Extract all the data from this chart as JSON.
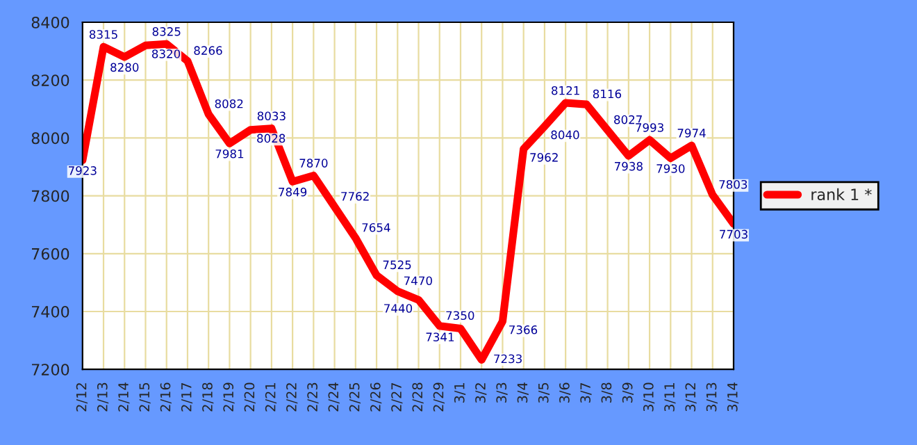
{
  "chart_data": {
    "type": "line",
    "categories": [
      "2/12",
      "2/13",
      "2/14",
      "2/15",
      "2/16",
      "2/17",
      "2/18",
      "2/19",
      "2/20",
      "2/21",
      "2/22",
      "2/23",
      "2/24",
      "2/25",
      "2/26",
      "2/27",
      "2/28",
      "2/29",
      "3/1",
      "3/2",
      "3/3",
      "3/4",
      "3/5",
      "3/6",
      "3/7",
      "3/8",
      "3/9",
      "3/10",
      "3/11",
      "3/12",
      "3/13",
      "3/14"
    ],
    "series": [
      {
        "name": "rank 1 *",
        "color": "#ff0000",
        "values": [
          7923,
          8315,
          8280,
          8320,
          8325,
          8266,
          8082,
          7981,
          8028,
          8033,
          7849,
          7870,
          7762,
          7654,
          7525,
          7470,
          7440,
          7350,
          7341,
          7233,
          7366,
          7962,
          8040,
          8121,
          8116,
          8027,
          7938,
          7993,
          7930,
          7974,
          7803,
          7703
        ]
      }
    ],
    "ylim": [
      7200,
      8400
    ],
    "yticks": [
      7200,
      7400,
      7600,
      7800,
      8000,
      8200,
      8400
    ],
    "grid": true,
    "legend": "right",
    "data_labels": true,
    "marker": "none",
    "line_style": "solid"
  }
}
